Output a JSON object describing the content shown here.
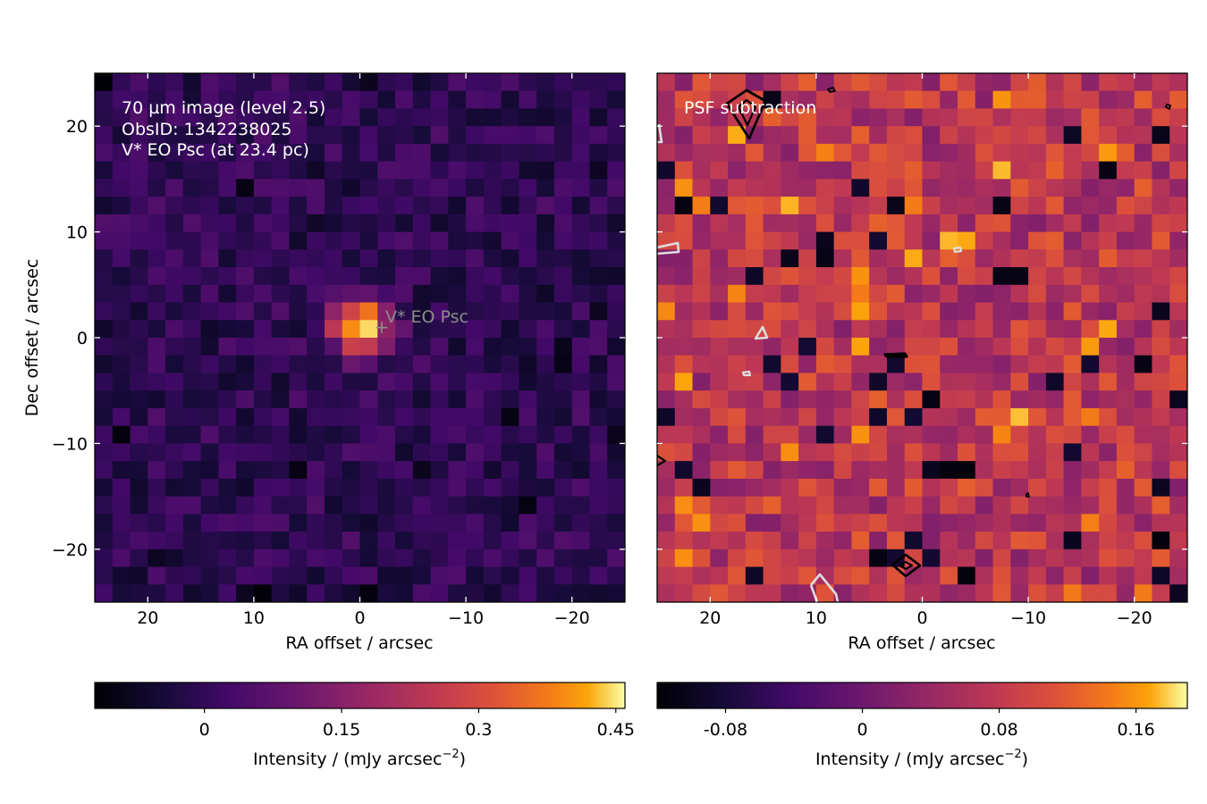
{
  "chart_data": [
    {
      "type": "heatmap",
      "colormap": "inferno",
      "annotations": [
        "70 µm image (level 2.5)",
        "ObsID: 1342238025",
        "V* EO Psc (at 23.4 pc)"
      ],
      "source_label": "V* EO Psc",
      "source_position": [
        -2,
        -1
      ],
      "xlabel": "RA offset / arcsec",
      "ylabel": "Dec offset / arcsec",
      "xlim": [
        25,
        -25
      ],
      "ylim": [
        -25,
        25
      ],
      "xticks": [
        20,
        10,
        0,
        -10,
        -20
      ],
      "xtick_labels": [
        "20",
        "10",
        "0",
        "−10",
        "−20"
      ],
      "yticks": [
        20,
        10,
        0,
        -10,
        -20
      ],
      "ytick_labels": [
        "20",
        "10",
        "0",
        "−10",
        "−20"
      ],
      "grid": false,
      "peak": {
        "center": [
          0,
          1
        ],
        "value": 0.45
      },
      "colorbar": {
        "label": "Intensity / (mJy arcsec",
        "label_exp": "−2",
        "label_end": ")",
        "vmin": -0.12,
        "vmax": 0.46,
        "ticks": [
          0,
          0.15,
          0.3,
          0.45
        ],
        "tick_labels": [
          "0",
          "0.15",
          "0.3",
          "0.45"
        ]
      }
    },
    {
      "type": "heatmap",
      "colormap": "inferno",
      "annotations": [
        "PSF subtraction"
      ],
      "xlabel": "RA offset / arcsec",
      "xlim": [
        25,
        -25
      ],
      "ylim": [
        -25,
        25
      ],
      "xticks": [
        20,
        10,
        0,
        -10,
        -20
      ],
      "xtick_labels": [
        "20",
        "10",
        "0",
        "−10",
        "−20"
      ],
      "grid": false,
      "contours": {
        "positive_color": "#000000",
        "negative_color": "#dddddd"
      },
      "colorbar": {
        "label": "Intensity / (mJy arcsec",
        "label_exp": "−2",
        "label_end": ")",
        "vmin": -0.12,
        "vmax": 0.19,
        "ticks": [
          -0.08,
          0,
          0.08,
          0.16
        ],
        "tick_labels": [
          "-0.08",
          "0",
          "0.08",
          "0.16"
        ]
      }
    }
  ]
}
